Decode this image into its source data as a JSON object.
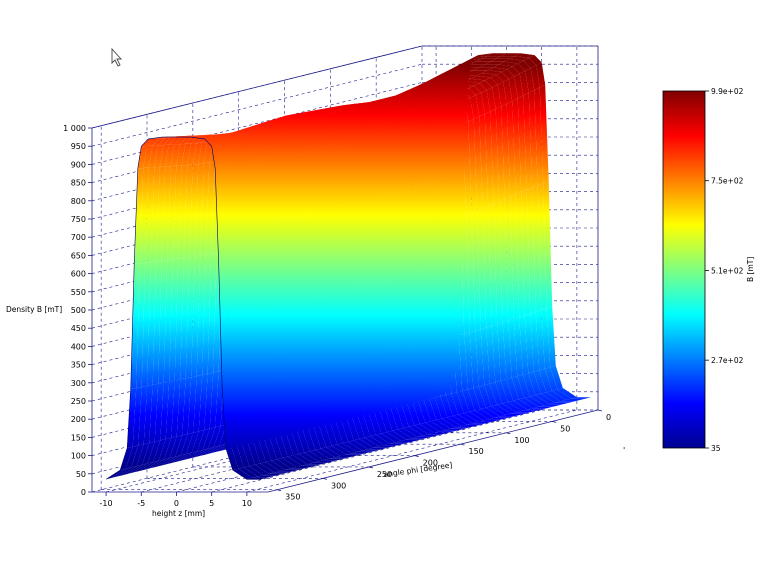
{
  "chart_data": {
    "type": "surface3d",
    "zlabel": "Density B [mT]",
    "xlabel": "height z [mm]",
    "ylabel": "angle phi [degree]",
    "zlim": [
      0,
      1000
    ],
    "xlim": [
      -12,
      13
    ],
    "ylim": [
      0,
      360
    ],
    "z_ticks": [
      "0",
      "50",
      "100",
      "150",
      "200",
      "250",
      "300",
      "350",
      "400",
      "450",
      "500",
      "550",
      "600",
      "650",
      "700",
      "750",
      "800",
      "850",
      "900",
      "950",
      "1 000"
    ],
    "x_ticks": [
      "-10",
      "-5",
      "0",
      "5",
      "10"
    ],
    "y_ticks": [
      "0",
      "50",
      "100",
      "150",
      "200",
      "250",
      "300",
      "350"
    ],
    "grid": true,
    "colormap": "jet",
    "series": [
      {
        "x": [
          -10,
          -8,
          -7,
          -6.5,
          -6,
          -5.5,
          -5,
          -4,
          -2,
          0,
          2,
          4,
          5,
          5.5,
          6,
          6.5,
          7,
          8,
          10,
          12
        ],
        "y_profile_phi": [
          0,
          30,
          60,
          90,
          120,
          150,
          180,
          210,
          240,
          270,
          300,
          330,
          360
        ],
        "peak_B_by_phi": [
          980,
          960,
          940,
          925,
          925,
          935,
          940,
          945,
          940,
          935,
          945,
          960,
          975
        ],
        "B_profile_vs_z": [
          35,
          60,
          120,
          280,
          620,
          880,
          940,
          960,
          965,
          965,
          965,
          960,
          940,
          880,
          620,
          280,
          120,
          60,
          35,
          35
        ]
      }
    ],
    "colorbar": {
      "label": "B [mT]",
      "ticks": [
        "9.9e+02",
        "7.5e+02",
        "5.1e+02",
        "2.7e+02",
        "35"
      ],
      "tick_values": [
        990,
        750,
        510,
        270,
        35
      ],
      "range": [
        35,
        990
      ]
    }
  },
  "ui": {
    "cursor_icon": "mouse-pointer-icon",
    "stray_mark": "'"
  }
}
